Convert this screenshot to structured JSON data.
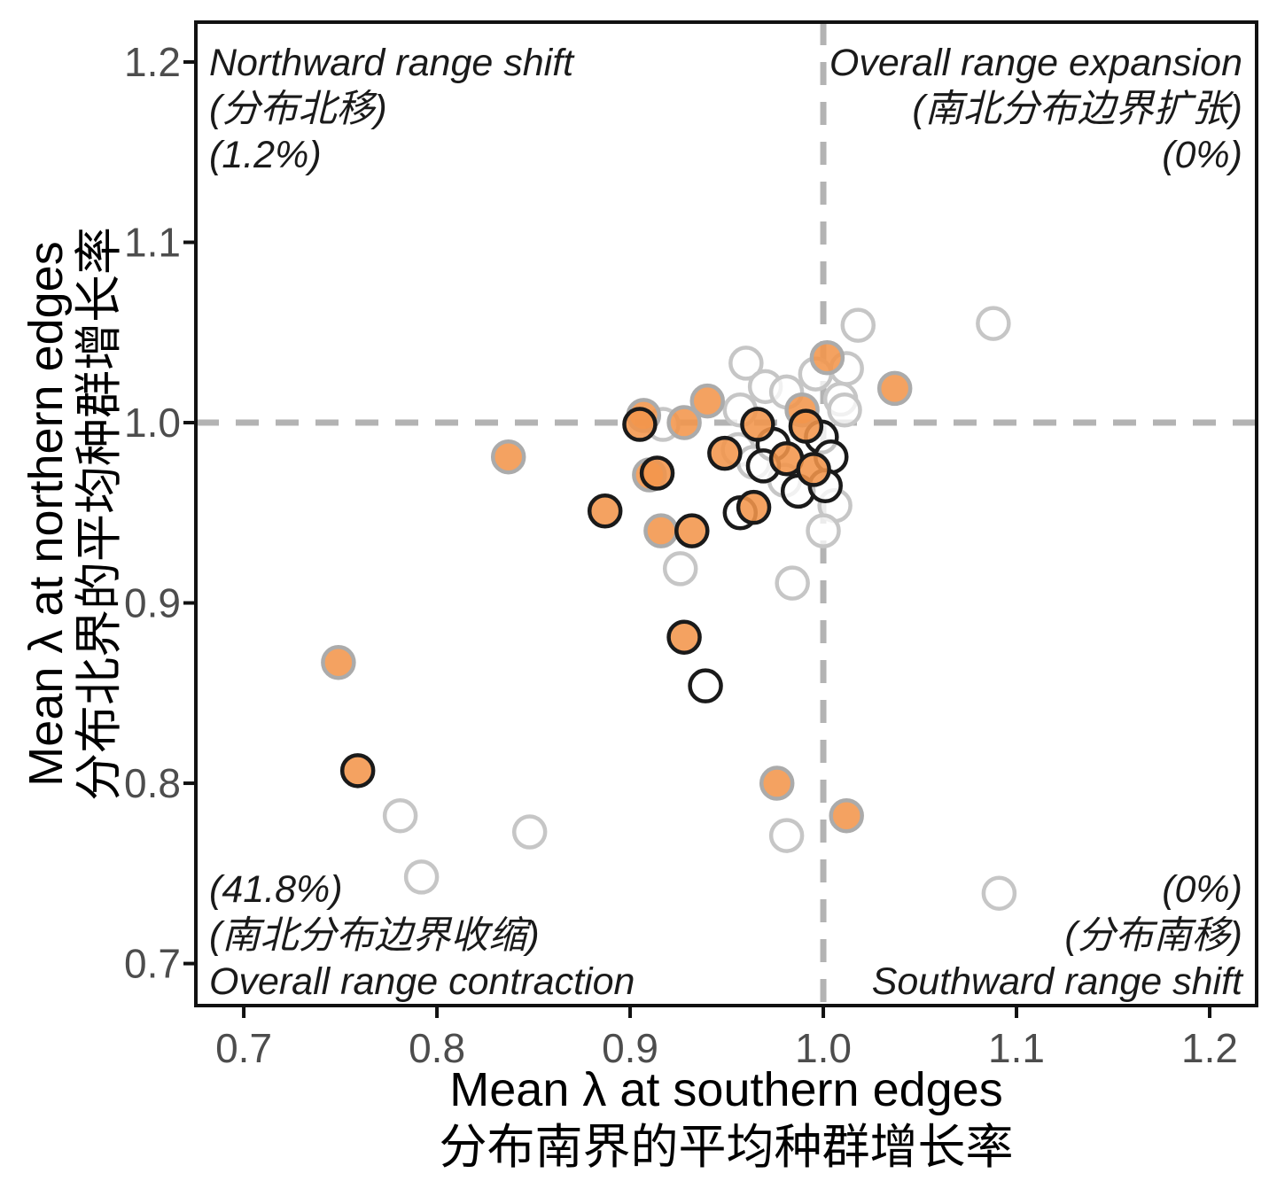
{
  "figure": {
    "x_axis": {
      "title_en": "Mean λ at southern edges",
      "title_zh": "分布南界的平均种群增长率",
      "tick_labels": [
        "0.7",
        "0.8",
        "0.9",
        "1.0",
        "1.1",
        "1.2"
      ]
    },
    "y_axis": {
      "title_en": "Mean λ at northern edges",
      "title_zh": "分布北界的平均种群增长率",
      "tick_labels": [
        "0.7",
        "0.8",
        "0.9",
        "1.0",
        "1.1",
        "1.2"
      ]
    },
    "quadrants": {
      "top_left": {
        "lines": [
          "Northward range shift",
          "(分布北移)",
          "(1.2%)"
        ]
      },
      "top_right": {
        "lines": [
          "Overall range expansion",
          "(南北分布边界扩张)",
          "(0%)"
        ]
      },
      "bottom_left": {
        "lines": [
          "(41.8%)",
          "(南北分布边界收缩)",
          "Overall range contraction"
        ]
      },
      "bottom_right": {
        "lines": [
          "(0%)",
          "(分布南移)",
          "Southward range shift"
        ]
      }
    },
    "colors": {
      "orange_fill": "#F3954B",
      "white_fill": "#FFFFFF",
      "black_stroke": "#1A1A1A",
      "gray_stroke_orange": "#ABABAB",
      "gray_stroke_white": "#C6C6C6",
      "dash_line": "#B3B3B3",
      "tick_label": "#4D4D4D",
      "plot_border": "#111111"
    }
  },
  "chart_data": {
    "type": "scatter",
    "title": "",
    "xlabel": "Mean λ at southern edges (分布南界的平均种群增长率)",
    "ylabel": "Mean λ at northern edges (分布北界的平均种群增长率)",
    "xlim": [
      0.6752,
      1.2243
    ],
    "ylim": [
      0.6767,
      1.2221
    ],
    "x_ticks": [
      0.7,
      0.8,
      0.9,
      1.0,
      1.1,
      1.2
    ],
    "y_ticks": [
      0.7,
      0.8,
      0.9,
      1.0,
      1.1,
      1.2
    ],
    "reference_lines": {
      "x": 1.0,
      "y": 1.0
    },
    "grid": false,
    "legend": "none",
    "annotations": {
      "top_left_pct": "1.2%",
      "top_right_pct": "0%",
      "bottom_left_pct": "41.8%",
      "bottom_right_pct": "0%"
    },
    "series": [
      {
        "name": "white-fill-gray-outline",
        "marker": {
          "fill": "white_fill",
          "stroke": "gray_stroke_white",
          "stroke_width": 4.5,
          "radius": 17.5,
          "fill_opacity": 0.75
        },
        "points": [
          [
            0.96,
            1.033
          ],
          [
            0.97,
            1.02
          ],
          [
            0.981,
            1.017
          ],
          [
            0.996,
            1.027
          ],
          [
            1.012,
            1.03
          ],
          [
            1.009,
            1.013
          ],
          [
            1.011,
            1.007
          ],
          [
            1.018,
            1.054
          ],
          [
            1.088,
            1.055
          ],
          [
            0.917,
            0.999
          ],
          [
            0.957,
            1.007
          ],
          [
            0.956,
            0.985
          ],
          [
            0.964,
            0.978
          ],
          [
            0.98,
            0.968
          ],
          [
            1.006,
            0.954
          ],
          [
            1.0,
            0.94
          ],
          [
            0.926,
            0.919
          ],
          [
            0.984,
            0.911
          ],
          [
            0.781,
            0.782
          ],
          [
            0.792,
            0.748
          ],
          [
            0.848,
            0.773
          ],
          [
            0.981,
            0.771
          ],
          [
            1.091,
            0.739
          ]
        ]
      },
      {
        "name": "orange-fill-gray-outline",
        "marker": {
          "fill": "orange_fill",
          "stroke": "gray_stroke_orange",
          "stroke_width": 4.5,
          "radius": 17.5,
          "fill_opacity": 0.88
        },
        "points": [
          [
            0.749,
            0.867
          ],
          [
            0.837,
            0.981
          ],
          [
            0.907,
            1.004
          ],
          [
            0.928,
            1.0
          ],
          [
            0.94,
            1.012
          ],
          [
            1.002,
            1.036
          ],
          [
            1.037,
            1.019
          ],
          [
            0.989,
            1.007
          ],
          [
            0.916,
            0.94
          ],
          [
            0.91,
            0.971
          ],
          [
            0.976,
            0.8
          ],
          [
            1.012,
            0.782
          ]
        ]
      },
      {
        "name": "white-fill-black-outline",
        "marker": {
          "fill": "white_fill",
          "stroke": "black_stroke",
          "stroke_width": 4.5,
          "radius": 17.5,
          "fill_opacity": 0.75
        },
        "points": [
          [
            0.974,
            0.988
          ],
          [
            0.999,
            0.992
          ],
          [
            1.004,
            0.981
          ],
          [
            0.969,
            0.976
          ],
          [
            0.987,
            0.962
          ],
          [
            1.001,
            0.965
          ],
          [
            0.957,
            0.95
          ],
          [
            0.939,
            0.854
          ]
        ]
      },
      {
        "name": "orange-fill-black-outline",
        "marker": {
          "fill": "orange_fill",
          "stroke": "black_stroke",
          "stroke_width": 4.5,
          "radius": 17.5,
          "fill_opacity": 0.88
        },
        "points": [
          [
            0.759,
            0.807
          ],
          [
            0.905,
            0.999
          ],
          [
            0.966,
            0.999
          ],
          [
            0.991,
            0.998
          ],
          [
            0.949,
            0.983
          ],
          [
            0.981,
            0.98
          ],
          [
            0.995,
            0.974
          ],
          [
            0.964,
            0.953
          ],
          [
            0.914,
            0.972
          ],
          [
            0.887,
            0.951
          ],
          [
            0.932,
            0.94
          ],
          [
            0.928,
            0.881
          ]
        ]
      }
    ]
  }
}
